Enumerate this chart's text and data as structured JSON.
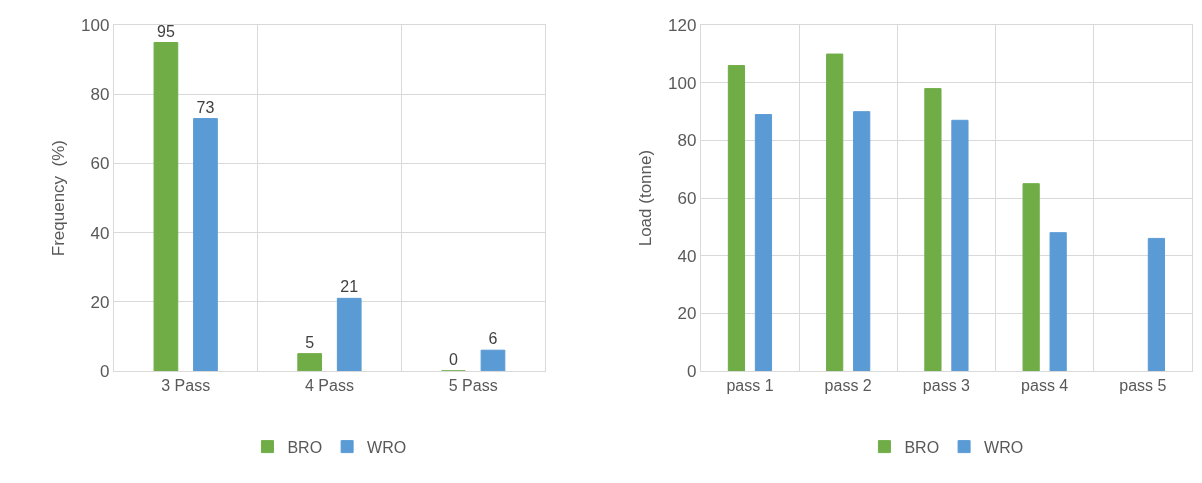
{
  "chart_data": [
    {
      "type": "bar",
      "ylabel": "Frequency  (%)",
      "categories": [
        "3 Pass",
        "4 Pass",
        "5 Pass"
      ],
      "ylim": [
        0,
        100
      ],
      "yticks": [
        0,
        20,
        40,
        60,
        80,
        100
      ],
      "grid": true,
      "legend": "bottom",
      "data_labels": true,
      "series": [
        {
          "name": "BRO",
          "color": "#70ad47",
          "values": [
            95,
            5,
            0
          ]
        },
        {
          "name": "WRO",
          "color": "#5b9bd5",
          "values": [
            73,
            21,
            6
          ]
        }
      ]
    },
    {
      "type": "bar",
      "ylabel": "Load (tonne)",
      "categories": [
        "pass 1",
        "pass 2",
        "pass 3",
        "pass 4",
        "pass 5"
      ],
      "ylim": [
        0,
        120
      ],
      "yticks": [
        0,
        20,
        40,
        60,
        80,
        100,
        120
      ],
      "grid": true,
      "legend": "bottom",
      "series": [
        {
          "name": "BRO",
          "color": "#70ad47",
          "values": [
            106,
            110,
            98,
            65,
            null
          ]
        },
        {
          "name": "WRO",
          "color": "#5b9bd5",
          "values": [
            89,
            90,
            87,
            48,
            46
          ]
        }
      ]
    }
  ]
}
